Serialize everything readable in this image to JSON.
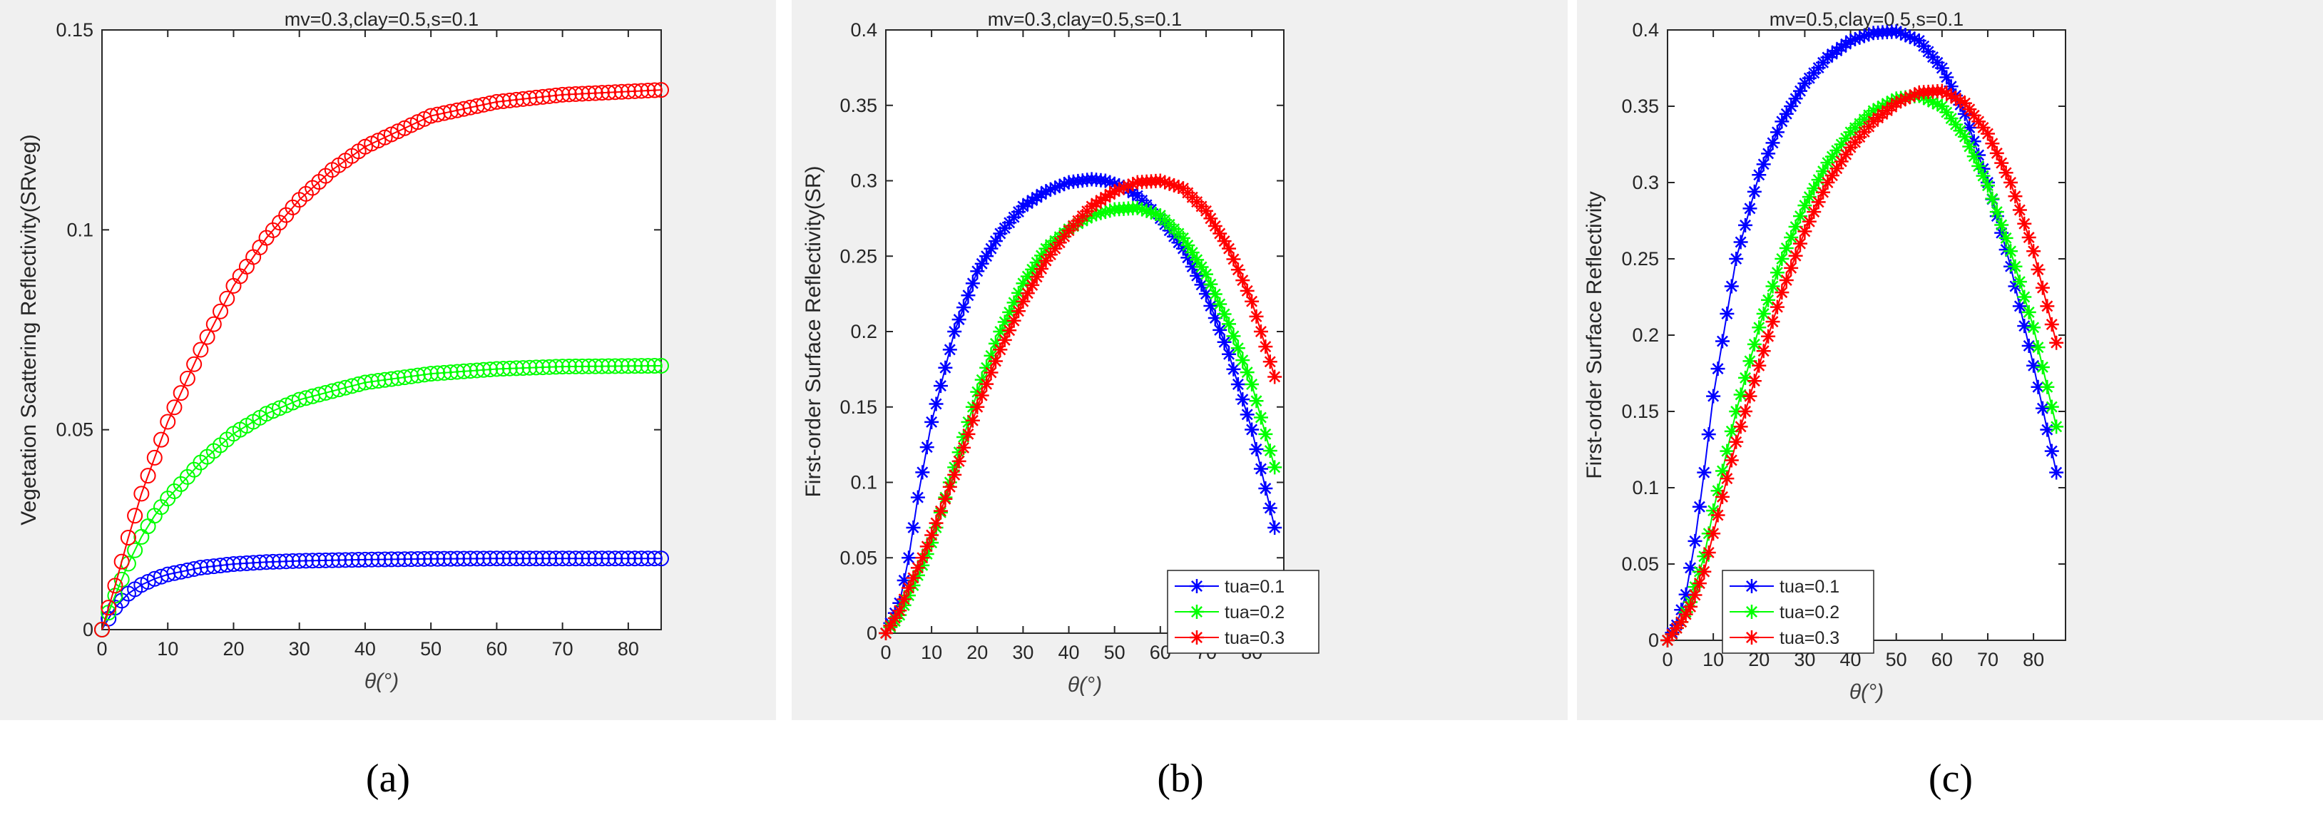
{
  "colors": {
    "panel_bg": "#f0f0f0",
    "axes_bg": "#ffffff",
    "axis": "#262626",
    "blue": "#0000ff",
    "green": "#00ff00",
    "red": "#ff0000"
  },
  "chart_data": [
    {
      "type": "line",
      "id": "a",
      "caption": "(a)",
      "title": "mv=0.3,clay=0.5,s=0.1",
      "xlabel": "θ(°)",
      "ylabel": "Vegetation Scattering Reflectivity(SRveg)",
      "xlim": [
        0,
        85
      ],
      "ylim": [
        0,
        0.15
      ],
      "xticks": [
        0,
        10,
        20,
        30,
        40,
        50,
        60,
        70,
        80
      ],
      "yticks": [
        0,
        0.05,
        0.1,
        0.15
      ],
      "ytick_labels": [
        "0",
        "0.05",
        "0.1",
        "0.15"
      ],
      "marker": "circle",
      "legend": null,
      "series": [
        {
          "name": "tua=0.1",
          "color": "blue",
          "x": [
            0,
            2,
            4,
            6,
            8,
            10,
            15,
            20,
            25,
            30,
            40,
            50,
            60,
            70,
            85
          ],
          "y": [
            0,
            0.0055,
            0.009,
            0.0112,
            0.0127,
            0.0138,
            0.0155,
            0.0164,
            0.0169,
            0.0172,
            0.0175,
            0.0177,
            0.0178,
            0.0178,
            0.0178
          ]
        },
        {
          "name": "tua=0.2",
          "color": "green",
          "x": [
            0,
            2,
            4,
            6,
            8,
            10,
            15,
            20,
            25,
            30,
            40,
            50,
            60,
            70,
            85
          ],
          "y": [
            0,
            0.0085,
            0.0165,
            0.0232,
            0.0285,
            0.0328,
            0.0418,
            0.049,
            0.054,
            0.0575,
            0.0618,
            0.064,
            0.0652,
            0.0658,
            0.066
          ]
        },
        {
          "name": "tua=0.3",
          "color": "red",
          "x": [
            0,
            2,
            4,
            6,
            8,
            10,
            15,
            20,
            25,
            30,
            35,
            40,
            50,
            60,
            70,
            85
          ],
          "y": [
            0,
            0.011,
            0.023,
            0.034,
            0.043,
            0.052,
            0.07,
            0.086,
            0.098,
            0.1075,
            0.115,
            0.1208,
            0.1285,
            0.132,
            0.1338,
            0.135
          ]
        }
      ]
    },
    {
      "type": "line",
      "id": "b",
      "caption": "(b)",
      "title": "mv=0.3,clay=0.5,s=0.1",
      "xlabel": "θ(°)",
      "ylabel": "First-order Surface Reflectivity(SR)",
      "xlim": [
        0,
        87
      ],
      "ylim": [
        0,
        0.4
      ],
      "xticks": [
        0,
        10,
        20,
        30,
        40,
        50,
        60,
        70,
        80
      ],
      "yticks": [
        0,
        0.05,
        0.1,
        0.15,
        0.2,
        0.25,
        0.3,
        0.35,
        0.4
      ],
      "ytick_labels": [
        "0",
        "0.05",
        "0.1",
        "0.15",
        "0.2",
        "0.25",
        "0.3",
        "0.35",
        "0.4"
      ],
      "marker": "star",
      "legend": "lower-right",
      "series": [
        {
          "name": "tua=0.1",
          "color": "blue",
          "x": [
            0,
            3,
            5,
            7,
            10,
            15,
            20,
            25,
            30,
            35,
            40,
            45,
            48,
            52,
            55,
            60,
            65,
            70,
            75,
            80,
            85
          ],
          "y": [
            0,
            0.02,
            0.05,
            0.09,
            0.14,
            0.2,
            0.24,
            0.265,
            0.283,
            0.293,
            0.299,
            0.301,
            0.3,
            0.296,
            0.29,
            0.275,
            0.255,
            0.225,
            0.185,
            0.135,
            0.07
          ]
        },
        {
          "name": "tua=0.2",
          "color": "green",
          "x": [
            0,
            3,
            5,
            8,
            10,
            15,
            20,
            25,
            30,
            35,
            40,
            45,
            50,
            55,
            60,
            65,
            70,
            75,
            80,
            85
          ],
          "y": [
            0,
            0.012,
            0.025,
            0.045,
            0.06,
            0.11,
            0.16,
            0.2,
            0.232,
            0.255,
            0.268,
            0.277,
            0.281,
            0.282,
            0.277,
            0.262,
            0.238,
            0.205,
            0.165,
            0.11
          ]
        },
        {
          "name": "tua=0.3",
          "color": "red",
          "x": [
            0,
            3,
            5,
            8,
            10,
            15,
            20,
            25,
            30,
            35,
            40,
            45,
            50,
            55,
            60,
            65,
            70,
            75,
            80,
            85
          ],
          "y": [
            0,
            0.015,
            0.03,
            0.05,
            0.065,
            0.105,
            0.15,
            0.188,
            0.22,
            0.247,
            0.267,
            0.283,
            0.293,
            0.299,
            0.3,
            0.295,
            0.28,
            0.255,
            0.22,
            0.17
          ]
        }
      ]
    },
    {
      "type": "line",
      "id": "c",
      "caption": "(c)",
      "title": "mv=0.5,clay=0.5,s=0.1",
      "xlabel": "θ(°)",
      "ylabel": "First-order Surface Reflectivity",
      "xlim": [
        0,
        87
      ],
      "ylim": [
        0,
        0.4
      ],
      "xticks": [
        0,
        10,
        20,
        30,
        40,
        50,
        60,
        70,
        80
      ],
      "yticks": [
        0,
        0.05,
        0.1,
        0.15,
        0.2,
        0.25,
        0.3,
        0.35,
        0.4
      ],
      "ytick_labels": [
        "0",
        "0.05",
        "0.1",
        "0.15",
        "0.2",
        "0.25",
        "0.3",
        "0.35",
        "0.4"
      ],
      "marker": "star",
      "legend": "lower-left",
      "series": [
        {
          "name": "tua=0.1",
          "color": "blue",
          "x": [
            0,
            2,
            4,
            6,
            8,
            10,
            15,
            20,
            25,
            30,
            35,
            40,
            45,
            50,
            55,
            60,
            65,
            70,
            75,
            80,
            85
          ],
          "y": [
            0,
            0.01,
            0.03,
            0.065,
            0.11,
            0.16,
            0.25,
            0.305,
            0.34,
            0.365,
            0.382,
            0.393,
            0.398,
            0.399,
            0.393,
            0.375,
            0.345,
            0.3,
            0.245,
            0.18,
            0.11
          ]
        },
        {
          "name": "tua=0.2",
          "color": "green",
          "x": [
            0,
            3,
            5,
            8,
            10,
            15,
            20,
            25,
            30,
            35,
            40,
            45,
            50,
            55,
            60,
            65,
            70,
            75,
            80,
            85
          ],
          "y": [
            0,
            0.012,
            0.025,
            0.055,
            0.085,
            0.15,
            0.205,
            0.25,
            0.285,
            0.313,
            0.333,
            0.347,
            0.355,
            0.357,
            0.35,
            0.33,
            0.298,
            0.255,
            0.205,
            0.14
          ]
        },
        {
          "name": "tua=0.3",
          "color": "red",
          "x": [
            0,
            3,
            5,
            8,
            10,
            15,
            20,
            25,
            30,
            35,
            40,
            45,
            50,
            55,
            60,
            65,
            70,
            75,
            80,
            85
          ],
          "y": [
            0,
            0.012,
            0.022,
            0.045,
            0.07,
            0.13,
            0.18,
            0.228,
            0.268,
            0.3,
            0.323,
            0.34,
            0.352,
            0.359,
            0.36,
            0.352,
            0.332,
            0.3,
            0.255,
            0.195
          ]
        }
      ]
    }
  ]
}
